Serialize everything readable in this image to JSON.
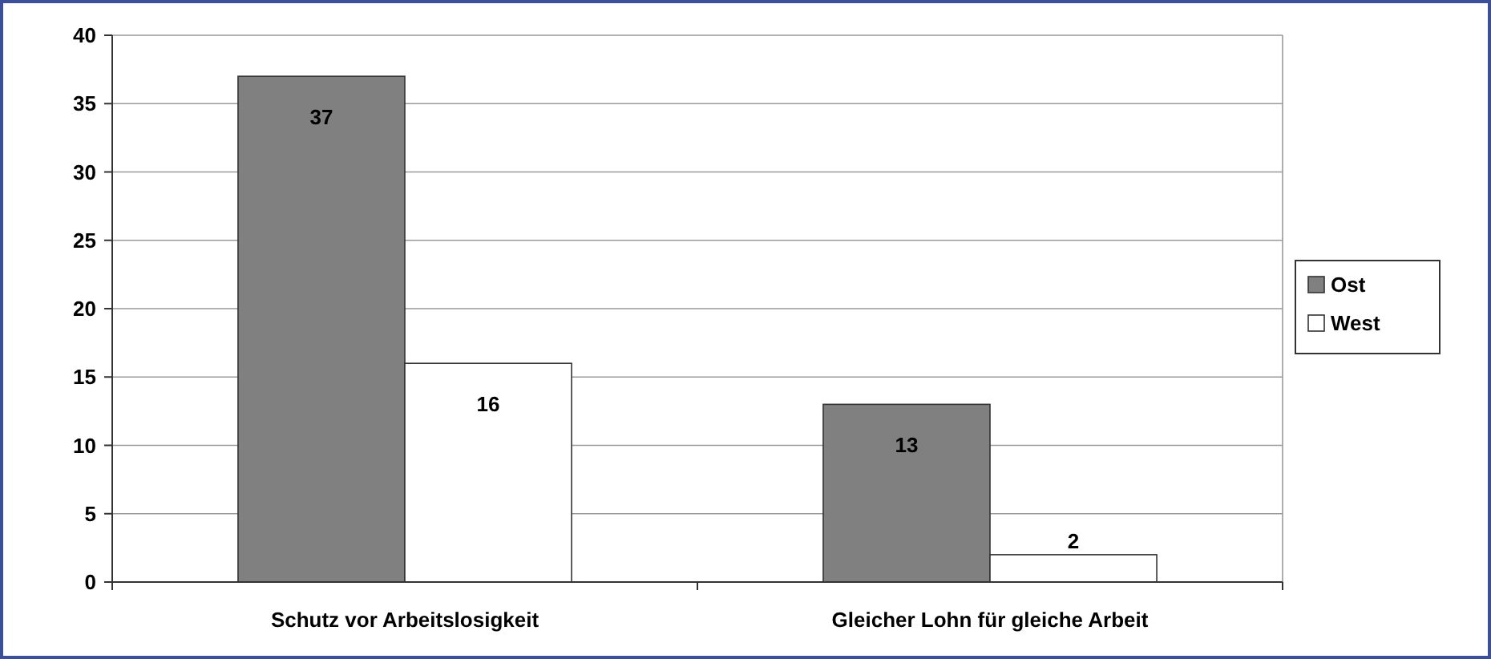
{
  "chart_data": {
    "type": "bar",
    "categories": [
      "Schutz vor Arbeitslosigkeit",
      "Gleicher Lohn für gleiche Arbeit"
    ],
    "series": [
      {
        "name": "Ost",
        "color": "#808080",
        "values": [
          37,
          13
        ]
      },
      {
        "name": "West",
        "color": "#ffffff",
        "values": [
          16,
          2
        ]
      }
    ],
    "ylim": [
      0,
      40
    ],
    "yticks": [
      0,
      5,
      10,
      15,
      20,
      25,
      30,
      35,
      40
    ],
    "grid": "y",
    "legend": "right",
    "data_labels": true
  }
}
